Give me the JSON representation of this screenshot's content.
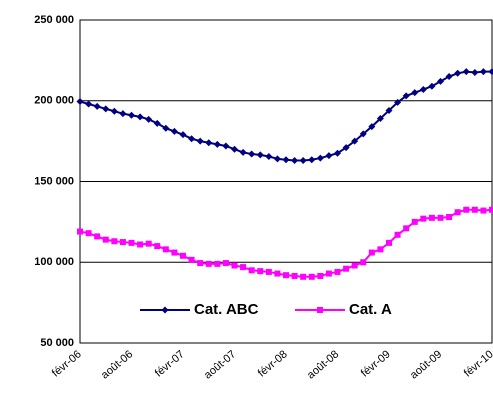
{
  "chart_data": {
    "type": "line",
    "categories": [
      "févr-06",
      null,
      null,
      null,
      null,
      null,
      "août-06",
      null,
      null,
      null,
      null,
      null,
      "févr-07",
      null,
      null,
      null,
      null,
      null,
      "août-07",
      null,
      null,
      null,
      null,
      null,
      "févr-08",
      null,
      null,
      null,
      null,
      null,
      "août-08",
      null,
      null,
      null,
      null,
      null,
      "févr-09",
      null,
      null,
      null,
      null,
      null,
      "août-09",
      null,
      null,
      null,
      null,
      null,
      "févr-10"
    ],
    "series": [
      {
        "name": "Cat. ABC",
        "color": "#000080",
        "marker": "diamond",
        "values": [
          199500,
          198000,
          196500,
          195000,
          193500,
          192000,
          191000,
          190000,
          188500,
          186000,
          183000,
          181000,
          179000,
          176500,
          175000,
          174000,
          173000,
          172000,
          170000,
          168000,
          167000,
          166500,
          165500,
          164000,
          163500,
          163000,
          163000,
          163500,
          164500,
          166000,
          167500,
          171000,
          175000,
          179500,
          184000,
          189000,
          194000,
          199000,
          203000,
          205000,
          207000,
          209000,
          212000,
          215000,
          217000,
          218000,
          217500,
          218000,
          218000
        ]
      },
      {
        "name": "Cat. A",
        "color": "#ff00ff",
        "marker": "square",
        "values": [
          119000,
          118000,
          116000,
          114000,
          113000,
          112500,
          112000,
          111000,
          111500,
          110000,
          108000,
          106000,
          104000,
          101500,
          99500,
          99000,
          99000,
          99500,
          98000,
          97000,
          95000,
          94500,
          94000,
          93000,
          92000,
          91500,
          91000,
          91000,
          91500,
          93000,
          94000,
          96000,
          98000,
          100000,
          106000,
          108000,
          112000,
          117000,
          121000,
          125000,
          127000,
          127500,
          127500,
          128000,
          131000,
          132500,
          132500,
          132000,
          132500
        ]
      }
    ],
    "ylim": [
      50000,
      250000
    ],
    "yticks": [
      {
        "value": 50000,
        "label": "50 000"
      },
      {
        "value": 100000,
        "label": "100 000"
      },
      {
        "value": 150000,
        "label": "150 000"
      },
      {
        "value": 200000,
        "label": "200 000"
      },
      {
        "value": 250000,
        "label": "250 000"
      }
    ],
    "grid": true
  }
}
